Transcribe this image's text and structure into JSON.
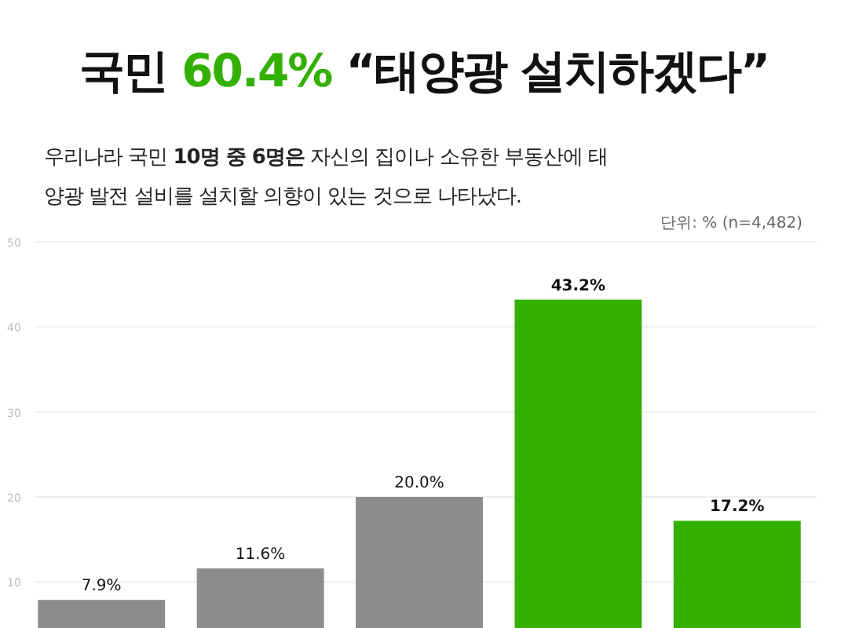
{
  "chart_data": {
    "type": "bar",
    "title": "국민 60.4% “태양광 설치하겠다”",
    "subtitle": "우리나라 국민 10명 중 6명은 자신의 집이나 소유한 부동산에 태양광 발전 설비를 설치할 의향이 있는 것으로 나타났다.",
    "annotations": [
      "단위: % (n=4,482)"
    ],
    "categories": [
      null,
      null,
      null,
      null,
      null
    ],
    "values": [
      7.9,
      11.6,
      20.0,
      43.2,
      17.2
    ],
    "colors": [
      "#8c8c8c",
      "#8c8c8c",
      "#8c8c8c",
      "#34b000",
      "#34b000"
    ],
    "value_labels": [
      "7.9%",
      "11.6%",
      "20.0%",
      "43.2%",
      "17.2%"
    ],
    "ylim": [
      4.6,
      50
    ],
    "yticks": [
      10,
      20,
      30,
      40,
      50
    ],
    "grid": "y"
  }
}
